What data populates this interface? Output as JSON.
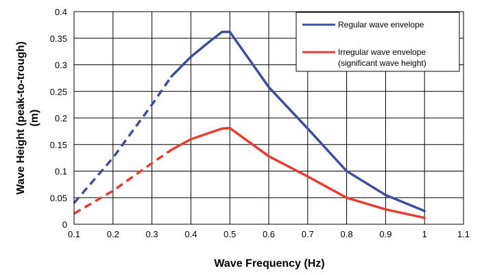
{
  "chart_data": {
    "type": "line",
    "title": "",
    "xlabel": "Wave Frequency (Hz)",
    "ylabel_line1": "Wave Height (peak-to-trough)",
    "ylabel_line2": "(m)",
    "xlim": [
      0.1,
      1.1
    ],
    "ylim": [
      0,
      0.4
    ],
    "x_ticks": [
      "0.1",
      "0.2",
      "0.3",
      "0.4",
      "0.5",
      "0.6",
      "0.7",
      "0.8",
      "0.9",
      "1",
      "1.1"
    ],
    "y_ticks": [
      "0",
      "0.05",
      "0.1",
      "0.15",
      "0.2",
      "0.25",
      "0.3",
      "0.35",
      "0.4"
    ],
    "grid": true,
    "legend_position": "top-right",
    "series": [
      {
        "name": "Regular wave envelope",
        "color": "#3a4fa0",
        "dashed_segment": [
          [
            0.1,
            0.04
          ],
          [
            0.2,
            0.125
          ],
          [
            0.3,
            0.225
          ],
          [
            0.35,
            0.278
          ]
        ],
        "solid_segment": [
          [
            0.35,
            0.278
          ],
          [
            0.4,
            0.315
          ],
          [
            0.45,
            0.345
          ],
          [
            0.48,
            0.362
          ],
          [
            0.5,
            0.362
          ],
          [
            0.55,
            0.31
          ],
          [
            0.6,
            0.258
          ],
          [
            0.7,
            0.18
          ],
          [
            0.8,
            0.1
          ],
          [
            0.9,
            0.055
          ],
          [
            1.0,
            0.025
          ]
        ]
      },
      {
        "name_line1": "Irregular wave envelope",
        "name_line2": "(significant wave height)",
        "color": "#ee3a2f",
        "dashed_segment": [
          [
            0.1,
            0.02
          ],
          [
            0.2,
            0.063
          ],
          [
            0.3,
            0.115
          ],
          [
            0.35,
            0.14
          ]
        ],
        "solid_segment": [
          [
            0.35,
            0.14
          ],
          [
            0.4,
            0.16
          ],
          [
            0.48,
            0.18
          ],
          [
            0.5,
            0.181
          ],
          [
            0.6,
            0.128
          ],
          [
            0.7,
            0.09
          ],
          [
            0.8,
            0.05
          ],
          [
            0.9,
            0.028
          ],
          [
            1.0,
            0.012
          ]
        ]
      }
    ]
  }
}
